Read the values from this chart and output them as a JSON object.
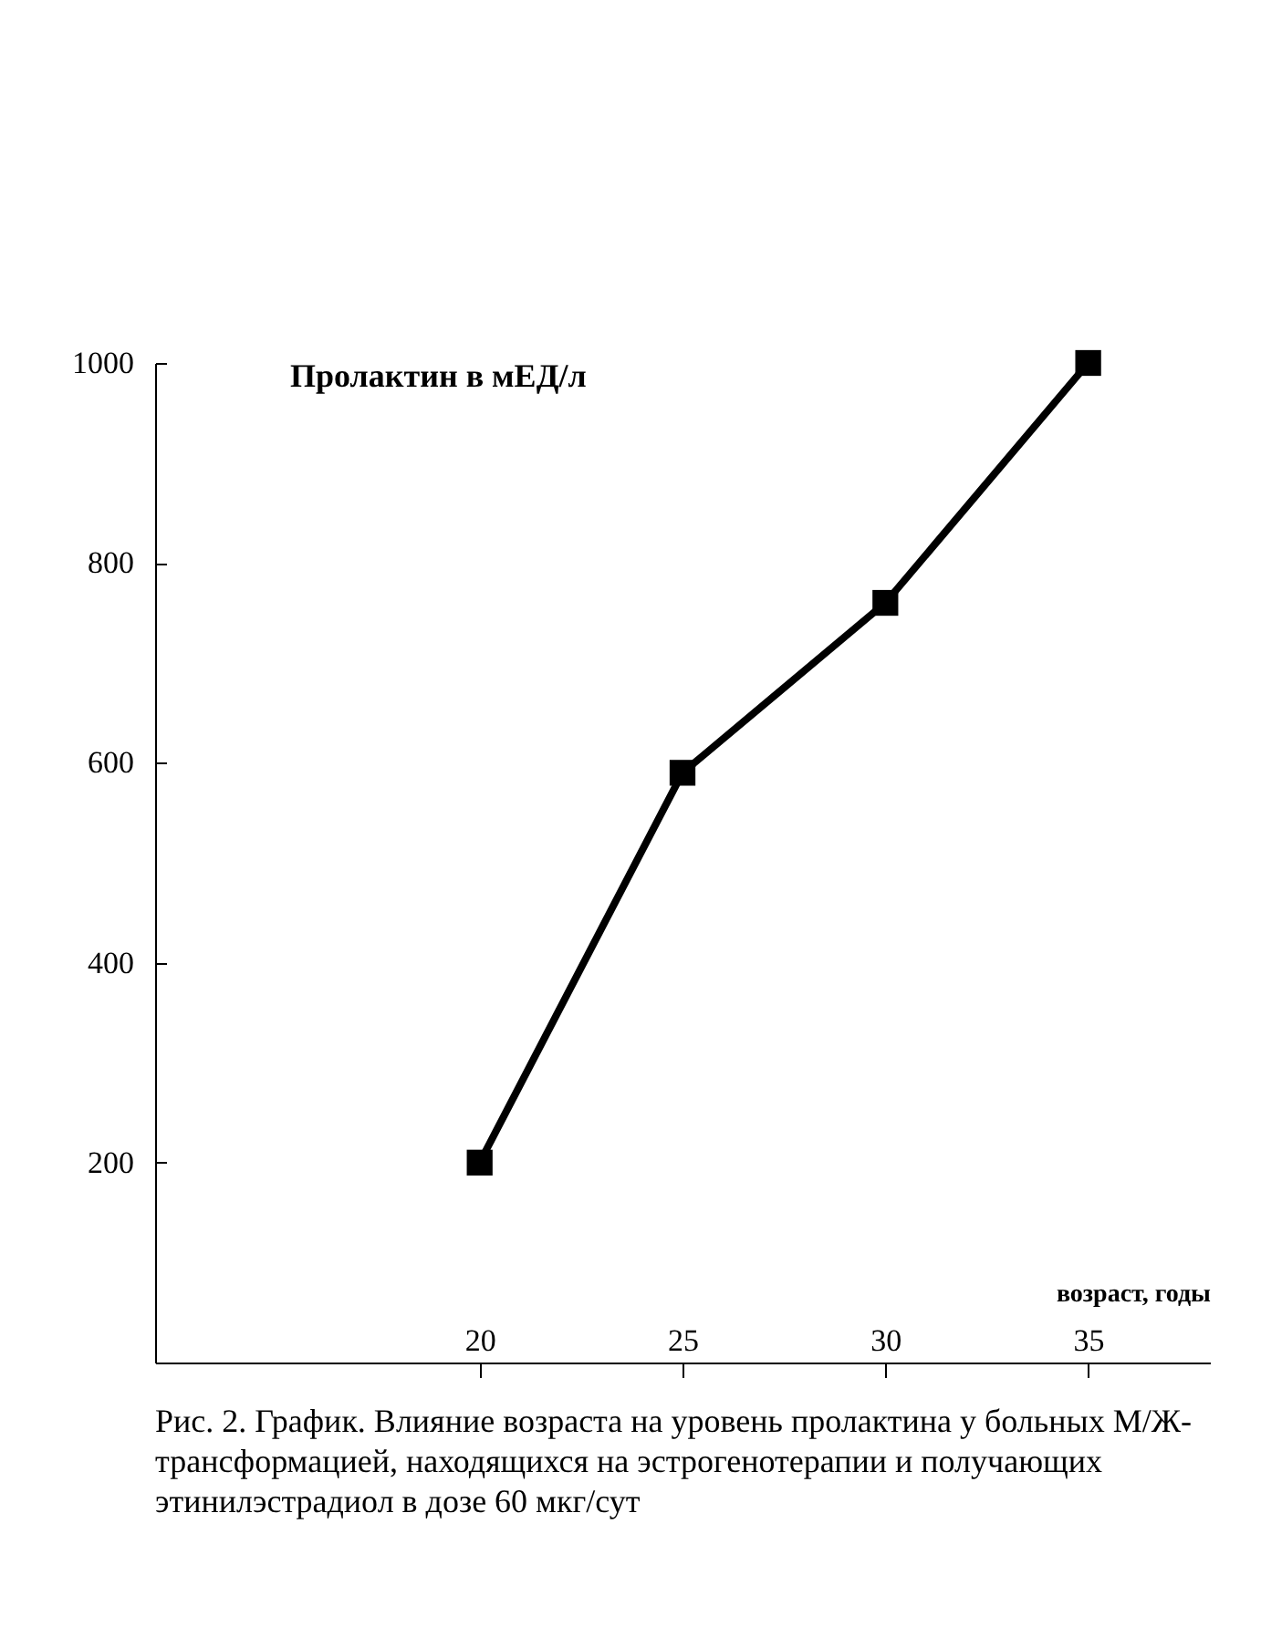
{
  "chart_data": {
    "type": "line",
    "title": "Пролактин в мЕД/л",
    "xlabel": "возраст, годы",
    "annotations": [
      "Рис. 2. График. Влияние возраста на уровень пролактина у больных  М/Ж-трансформацией, находящихся на эстрогенотерапии и получающих этинилэстрадиол в дозе 60 мкг/сут"
    ],
    "x": [
      20,
      25,
      30,
      35
    ],
    "series": [
      {
        "color": "#000000",
        "values": [
          200,
          590,
          760,
          1000
        ]
      }
    ],
    "xlim": [
      12,
      38
    ],
    "xticks": [
      20,
      25,
      30,
      35
    ],
    "ylim": [
      0,
      1000
    ],
    "yticks": [
      200,
      400,
      600,
      800,
      1000
    ],
    "grid": false,
    "legend": false,
    "marker": "square",
    "line_style": "solid"
  }
}
